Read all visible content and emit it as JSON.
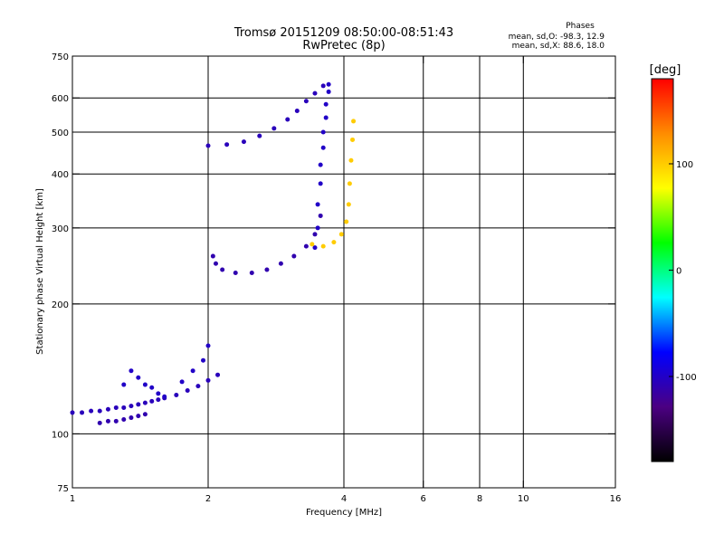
{
  "header": {
    "title": "Tromsø 20151209 08:50:00-08:51:43",
    "subtitle": "RwPretec (8p)",
    "stats_title": "Phases",
    "stats_line1": "mean, sd,O: -98.3, 12.9",
    "stats_line2": "mean, sd,X:  88.6, 18.0"
  },
  "chart_data": {
    "type": "scatter",
    "xlabel": "Frequency [MHz]",
    "ylabel": "Stationary phase Virtual Height [km]",
    "x_scale": "log",
    "y_scale": "log",
    "xlim": [
      1,
      16
    ],
    "ylim": [
      75,
      750
    ],
    "x_ticks": [
      1,
      2,
      4,
      6,
      8,
      10,
      16
    ],
    "y_ticks": [
      75,
      100,
      200,
      300,
      400,
      500,
      600,
      750
    ],
    "x_grid": [
      2,
      4,
      6,
      8,
      10
    ],
    "y_grid": [
      100,
      200,
      300,
      400,
      500,
      600
    ],
    "grid": true,
    "colorbar": {
      "label": "[deg]",
      "range": [
        -180,
        180
      ],
      "ticks": [
        100,
        0,
        -100
      ],
      "colors": [
        "#000000",
        "#4b0082",
        "#0000ff",
        "#00ffff",
        "#00ff00",
        "#ffff00",
        "#ff8c00",
        "#ff0000"
      ]
    },
    "traces": [
      {
        "id": "e-region",
        "phase": -105,
        "points": [
          [
            1.0,
            112
          ],
          [
            1.05,
            112
          ],
          [
            1.1,
            113
          ],
          [
            1.15,
            113
          ],
          [
            1.2,
            114
          ],
          [
            1.25,
            115
          ],
          [
            1.3,
            115
          ],
          [
            1.35,
            116
          ],
          [
            1.4,
            117
          ],
          [
            1.45,
            118
          ],
          [
            1.5,
            119
          ],
          [
            1.55,
            120
          ],
          [
            1.6,
            121
          ],
          [
            1.7,
            123
          ],
          [
            1.8,
            126
          ],
          [
            1.9,
            129
          ],
          [
            2.0,
            133
          ],
          [
            2.1,
            137
          ]
        ]
      },
      {
        "id": "e-region-lower",
        "phase": -110,
        "points": [
          [
            1.15,
            106
          ],
          [
            1.2,
            107
          ],
          [
            1.25,
            107
          ],
          [
            1.3,
            108
          ],
          [
            1.35,
            109
          ],
          [
            1.4,
            110
          ],
          [
            1.45,
            111
          ]
        ]
      },
      {
        "id": "e-region-upper",
        "phase": -100,
        "points": [
          [
            1.3,
            130
          ],
          [
            1.35,
            140
          ],
          [
            1.4,
            135
          ],
          [
            1.45,
            130
          ],
          [
            1.5,
            128
          ],
          [
            1.55,
            124
          ],
          [
            1.6,
            122
          ],
          [
            1.75,
            132
          ],
          [
            1.85,
            140
          ],
          [
            1.95,
            148
          ],
          [
            2.0,
            160
          ]
        ]
      },
      {
        "id": "f1-o-trace",
        "phase": -110,
        "points": [
          [
            2.05,
            258
          ],
          [
            2.08,
            248
          ],
          [
            2.15,
            240
          ],
          [
            2.3,
            236
          ],
          [
            2.5,
            236
          ],
          [
            2.7,
            240
          ],
          [
            2.9,
            248
          ],
          [
            3.1,
            258
          ],
          [
            3.3,
            272
          ],
          [
            3.45,
            290
          ],
          [
            3.55,
            320
          ]
        ]
      },
      {
        "id": "f2-o-trace",
        "phase": -105,
        "points": [
          [
            2.0,
            465
          ],
          [
            2.2,
            468
          ],
          [
            2.4,
            475
          ],
          [
            2.6,
            490
          ],
          [
            2.8,
            510
          ],
          [
            3.0,
            535
          ],
          [
            3.15,
            560
          ],
          [
            3.3,
            590
          ],
          [
            3.45,
            615
          ],
          [
            3.6,
            640
          ]
        ]
      },
      {
        "id": "f2-o-cusp",
        "phase": -100,
        "points": [
          [
            3.45,
            270
          ],
          [
            3.5,
            300
          ],
          [
            3.5,
            340
          ],
          [
            3.55,
            380
          ],
          [
            3.55,
            420
          ],
          [
            3.6,
            460
          ],
          [
            3.6,
            500
          ],
          [
            3.65,
            540
          ],
          [
            3.65,
            580
          ],
          [
            3.7,
            620
          ],
          [
            3.7,
            645
          ]
        ]
      },
      {
        "id": "x-trace",
        "phase": 100,
        "points": [
          [
            3.4,
            275
          ],
          [
            3.6,
            272
          ],
          [
            3.8,
            278
          ],
          [
            3.95,
            290
          ],
          [
            4.05,
            310
          ],
          [
            4.1,
            340
          ],
          [
            4.12,
            380
          ],
          [
            4.15,
            430
          ],
          [
            4.18,
            480
          ],
          [
            4.2,
            530
          ]
        ]
      }
    ]
  }
}
